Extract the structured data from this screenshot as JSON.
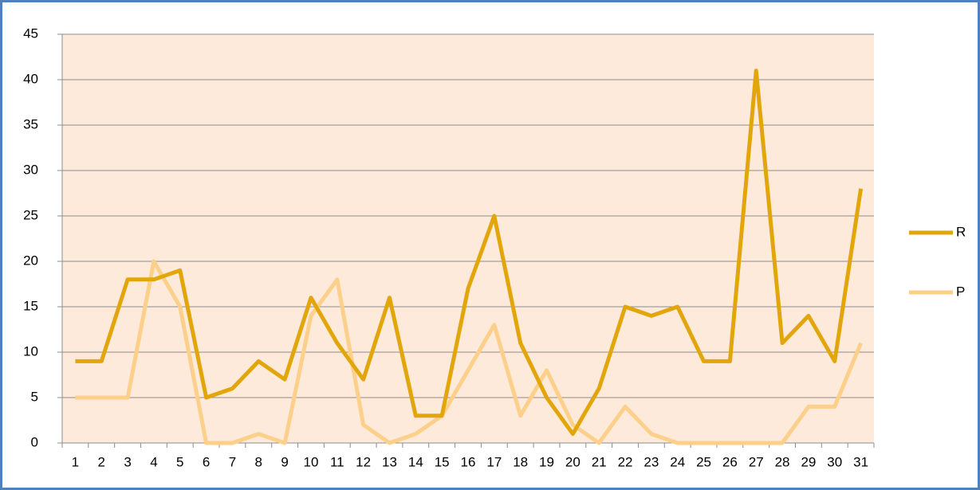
{
  "chart_data": {
    "type": "line",
    "categories": [
      "1",
      "2",
      "3",
      "4",
      "5",
      "6",
      "7",
      "8",
      "9",
      "10",
      "11",
      "12",
      "13",
      "14",
      "15",
      "16",
      "17",
      "18",
      "19",
      "20",
      "21",
      "22",
      "23",
      "24",
      "25",
      "26",
      "27",
      "28",
      "29",
      "30",
      "31"
    ],
    "series": [
      {
        "name": "R",
        "color": "#e2a60b",
        "values": [
          9,
          9,
          18,
          18,
          19,
          5,
          6,
          9,
          7,
          16,
          11,
          7,
          16,
          3,
          3,
          17,
          25,
          11,
          5,
          1,
          6,
          15,
          14,
          15,
          9,
          9,
          41,
          11,
          14,
          9,
          28
        ]
      },
      {
        "name": "P",
        "color": "#fcd08a",
        "values": [
          5,
          5,
          5,
          20,
          15,
          0,
          0,
          1,
          0,
          14,
          18,
          2,
          0,
          1,
          3,
          8,
          13,
          3,
          8,
          2,
          0,
          4,
          1,
          0,
          0,
          0,
          0,
          0,
          4,
          4,
          11
        ]
      }
    ],
    "ylim": [
      0,
      45
    ],
    "yticks": [
      0,
      5,
      10,
      15,
      20,
      25,
      30,
      35,
      40,
      45
    ],
    "grid": true,
    "legend": "right"
  }
}
